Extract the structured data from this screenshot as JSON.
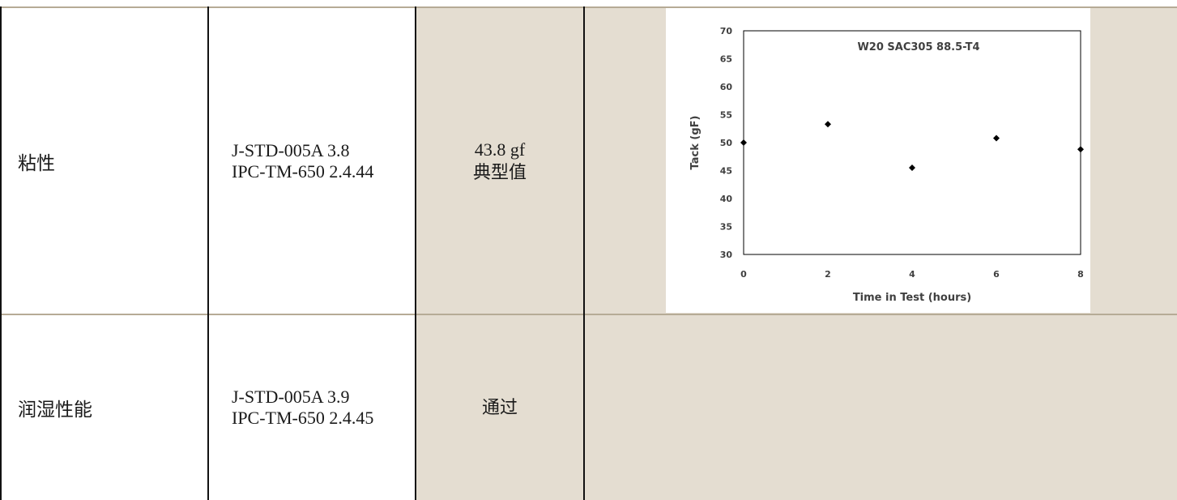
{
  "rows": [
    {
      "property": "粘性",
      "method_line1": "J-STD-005A 3.8",
      "method_line2": "IPC-TM-650 2.4.44",
      "result_line1": "43.8 gf",
      "result_line2": "典型值"
    },
    {
      "property": "润湿性能",
      "method_line1": "J-STD-005A 3.9",
      "method_line2": "IPC-TM-650 2.4.45",
      "result_line1": "通过"
    }
  ],
  "chart_data": {
    "type": "scatter",
    "title": "W20 SAC305 88.5-T4",
    "xlabel": "Time in Test  (hours)",
    "ylabel": "Tack (gF)",
    "xlim": [
      0,
      8
    ],
    "ylim": [
      30,
      70
    ],
    "xticks": [
      "0",
      "2",
      "4",
      "6",
      "8"
    ],
    "yticks": [
      "30",
      "35",
      "40",
      "45",
      "50",
      "55",
      "60",
      "65",
      "70"
    ],
    "grid": false,
    "marker": "diamond",
    "series": [
      {
        "x": [
          0,
          2,
          4,
          6,
          8
        ],
        "y": [
          50,
          53.3,
          45.5,
          50.8,
          48.8
        ]
      }
    ]
  },
  "colors": {
    "row_shade": "#e4ddd1",
    "rule": "#b6ab96",
    "chart_ink": "#000000",
    "chart_text": "#404040"
  }
}
